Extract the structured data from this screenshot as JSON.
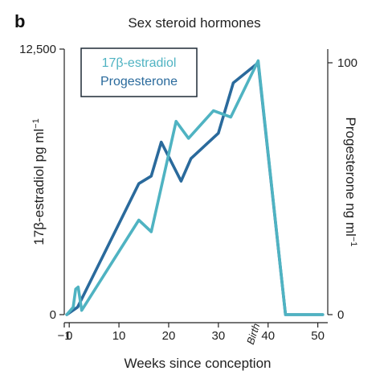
{
  "panel_label": "b",
  "colors": {
    "estradiol": "#4fb3c2",
    "progesterone": "#2a6a9c",
    "axis": "#222222",
    "legend_border": "#1e2a36"
  },
  "chart_data": {
    "type": "line",
    "title": "Sex steroid hormones",
    "xlabel": "Weeks since conception",
    "ylabel_left": "17β-estradiol pg ml",
    "ylabel_left_sup": "−1",
    "ylabel_right": "Progesterone ng ml",
    "ylabel_right_sup": "−1",
    "xlim": [
      -1,
      52
    ],
    "y_left_lim": [
      0,
      12500
    ],
    "y_right_lim": [
      0,
      100
    ],
    "x_ticks": [
      {
        "value": -1,
        "label": "−1"
      },
      {
        "value": 0,
        "label": "0"
      },
      {
        "value": 10,
        "label": "10"
      },
      {
        "value": 20,
        "label": "20"
      },
      {
        "value": 30,
        "label": "30"
      },
      {
        "value": 40,
        "label": "40"
      },
      {
        "value": 50,
        "label": "50"
      }
    ],
    "y_left_ticks": [
      {
        "value": 0,
        "label": "0"
      },
      {
        "value": 12500,
        "label": "12,500"
      }
    ],
    "y_right_ticks": [
      {
        "value": 0,
        "label": "0"
      },
      {
        "value": 100,
        "label": "100"
      }
    ],
    "legend": {
      "entries": [
        "17β-estradiol",
        "Progesterone"
      ],
      "placement": "top-left"
    },
    "annotations": [
      {
        "text": "Birth",
        "x": 38
      }
    ],
    "series": [
      {
        "name": "17β-estradiol",
        "axis": "left",
        "points": [
          [
            -0.5,
            0
          ],
          [
            0.8,
            350
          ],
          [
            1.3,
            1200
          ],
          [
            1.8,
            1300
          ],
          [
            2.5,
            200
          ],
          [
            14,
            4450
          ],
          [
            16.5,
            3900
          ],
          [
            21.5,
            9100
          ],
          [
            24,
            8300
          ],
          [
            29,
            9600
          ],
          [
            32.5,
            9300
          ],
          [
            38,
            11950
          ],
          [
            43.5,
            0
          ],
          [
            51,
            0
          ]
        ]
      },
      {
        "name": "Progesterone",
        "axis": "right",
        "points": [
          [
            -0.5,
            0
          ],
          [
            1.7,
            3
          ],
          [
            14,
            52
          ],
          [
            16.5,
            55
          ],
          [
            18.5,
            68.5
          ],
          [
            22.5,
            53
          ],
          [
            24.5,
            62
          ],
          [
            30,
            72
          ],
          [
            33,
            92
          ],
          [
            38,
            100
          ],
          [
            43.5,
            0
          ],
          [
            51,
            0
          ]
        ]
      }
    ]
  }
}
